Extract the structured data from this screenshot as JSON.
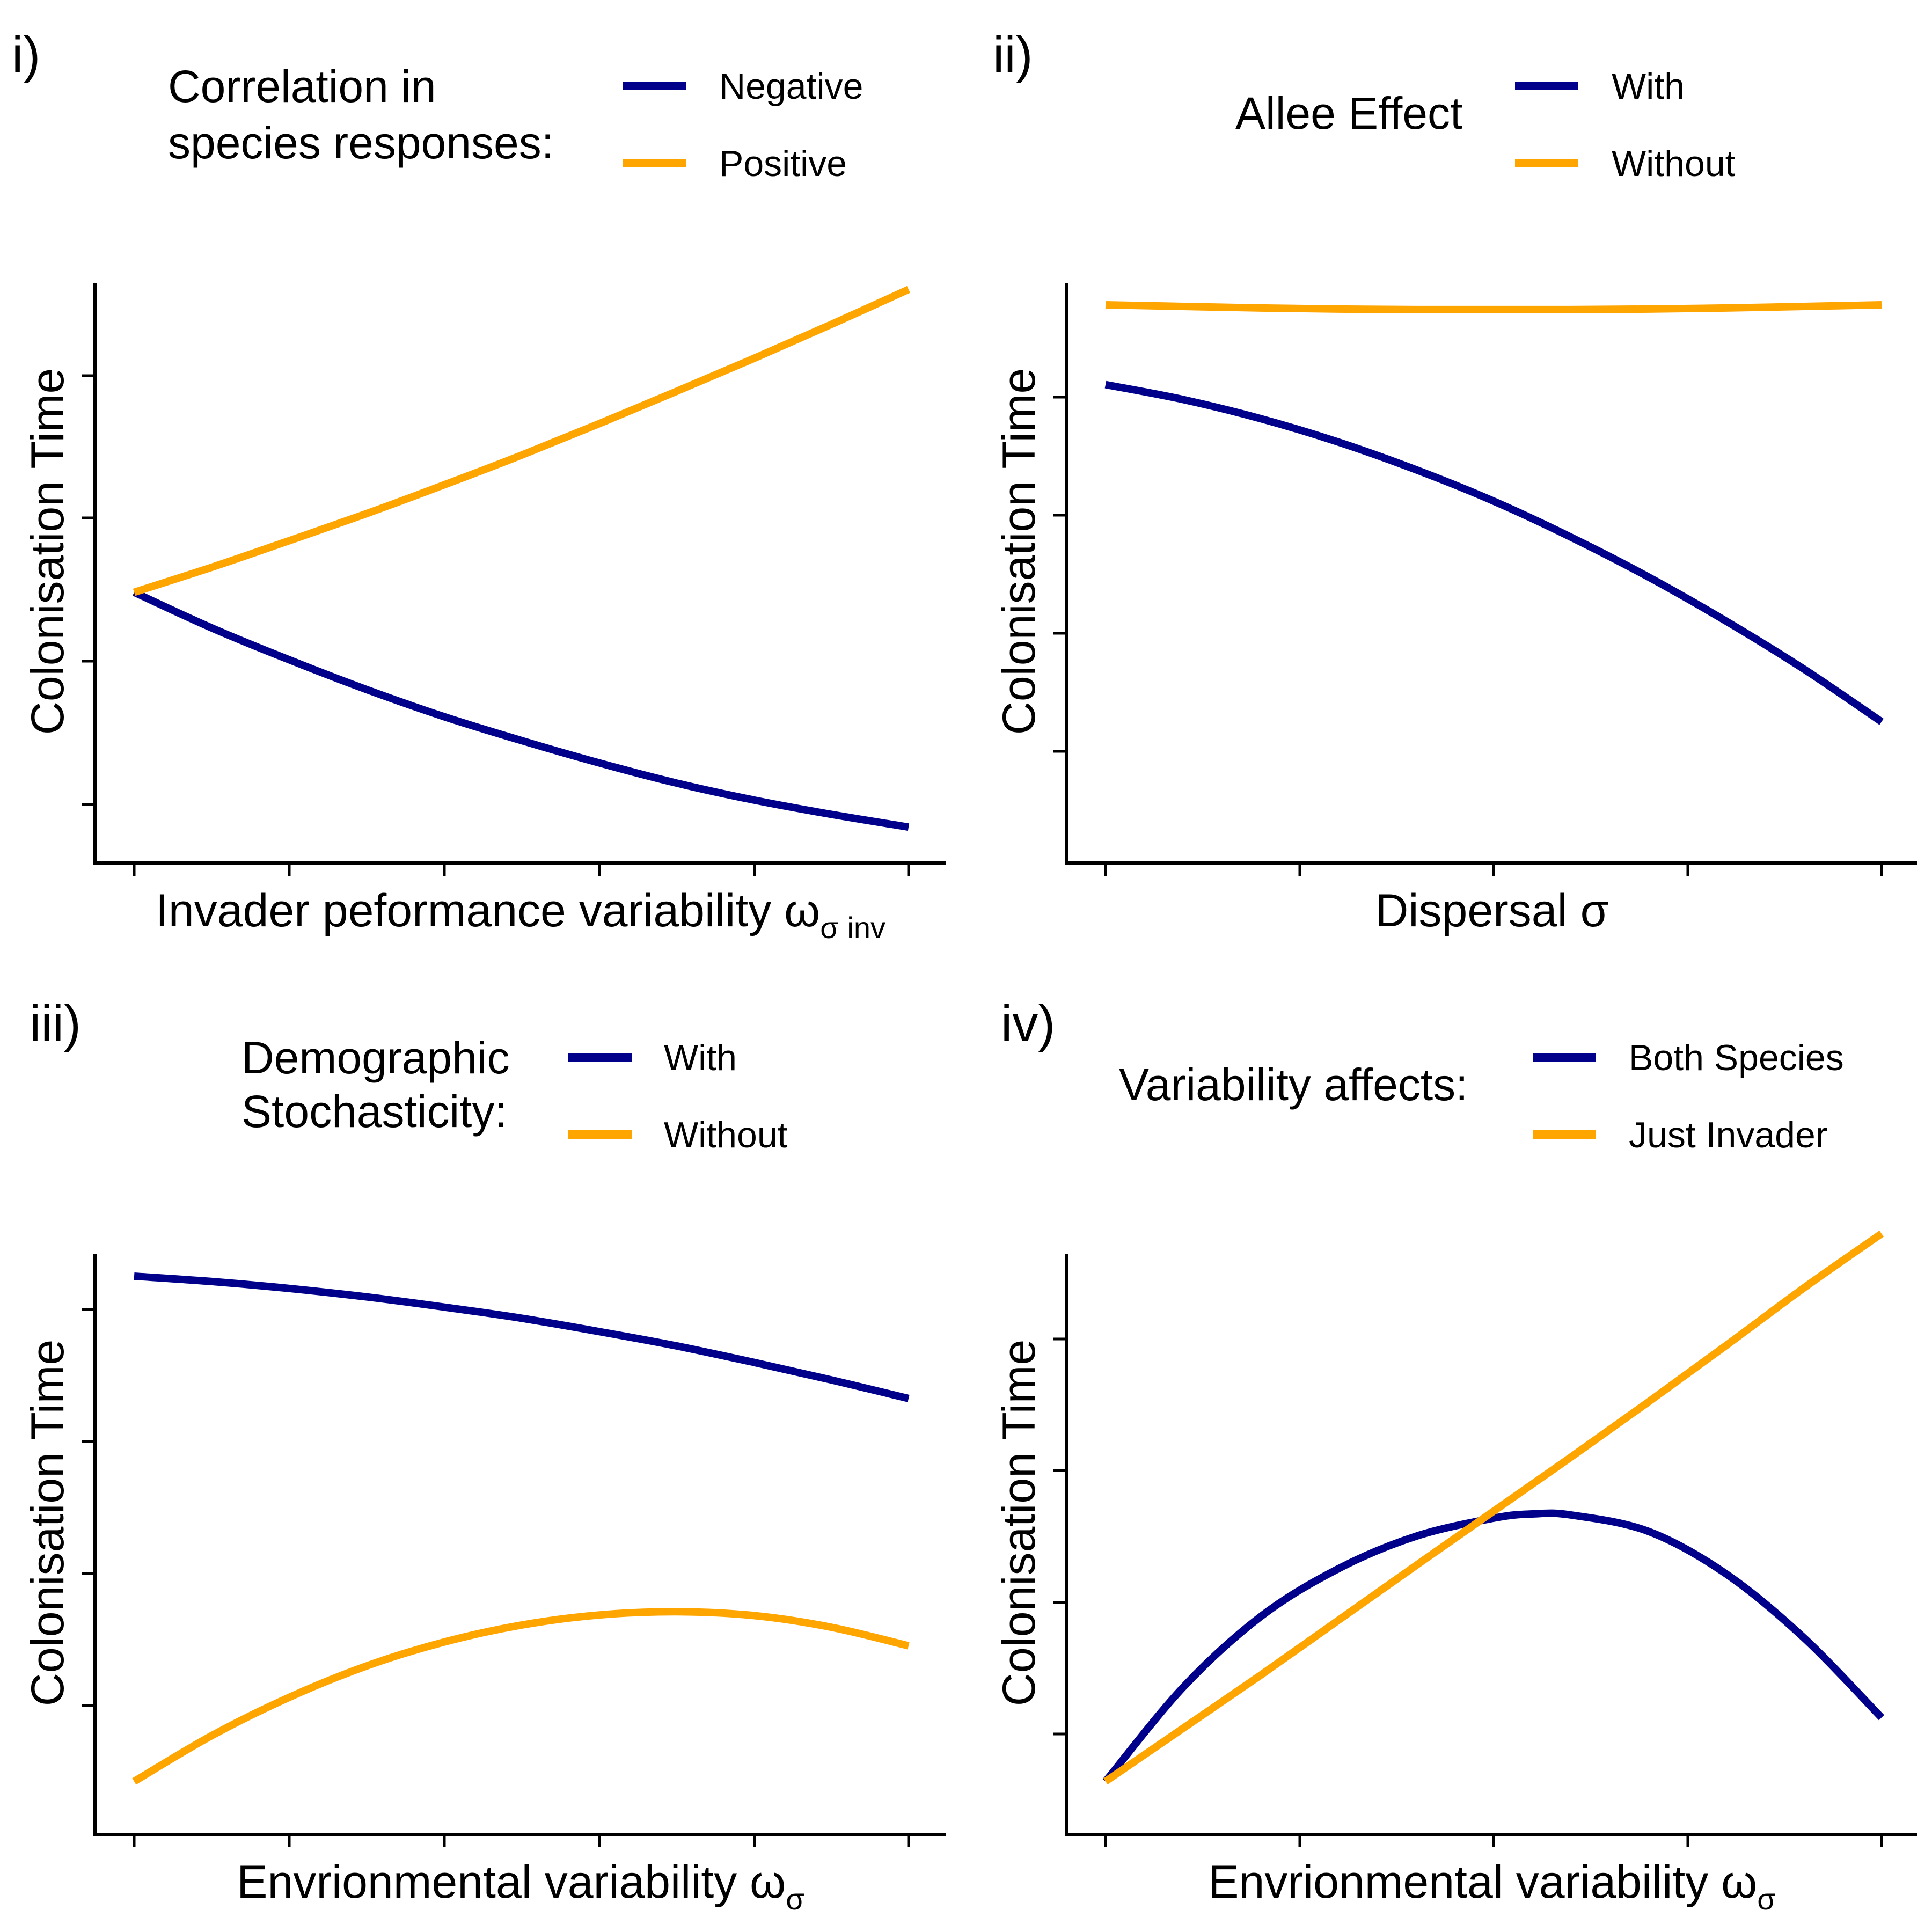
{
  "colors": {
    "navy": "#00008B",
    "orange": "#FFA500"
  },
  "chart_data": [
    {
      "type": "line",
      "panel_label": "i)",
      "legend": {
        "title_lines": [
          "Correlation in",
          "species responses:"
        ],
        "entries": [
          "Negative",
          "Positive"
        ]
      },
      "xlabel": {
        "main": "Invader peformance variability ω",
        "sub": "σ inv"
      },
      "ylabel": "Colonisation Time",
      "xlim": [
        0,
        1
      ],
      "ylim": [
        0,
        1
      ],
      "series": [
        {
          "name": "Negative",
          "color": "#00008B",
          "x": [
            0,
            0.1,
            0.2,
            0.3,
            0.4,
            0.5,
            0.6,
            0.7,
            0.8,
            0.9,
            1.0
          ],
          "y": [
            0.46,
            0.393,
            0.333,
            0.277,
            0.226,
            0.181,
            0.139,
            0.101,
            0.069,
            0.042,
            0.018
          ]
        },
        {
          "name": "Positive",
          "color": "#FFA500",
          "x": [
            0,
            0.1,
            0.2,
            0.3,
            0.4,
            0.5,
            0.6,
            0.7,
            0.8,
            0.9,
            1.0
          ],
          "y": [
            0.46,
            0.507,
            0.557,
            0.608,
            0.662,
            0.718,
            0.777,
            0.838,
            0.9,
            0.964,
            1.03
          ]
        }
      ]
    },
    {
      "type": "line",
      "panel_label": "ii)",
      "legend": {
        "title_lines": [
          "Allee Effect"
        ],
        "entries": [
          "With",
          "Without"
        ]
      },
      "xlabel": {
        "main": "Dispersal σ",
        "sub": ""
      },
      "ylabel": "Colonisation Time",
      "xlim": [
        0,
        1
      ],
      "ylim": [
        0,
        1
      ],
      "series": [
        {
          "name": "With",
          "color": "#00008B",
          "x": [
            0,
            0.1,
            0.2,
            0.3,
            0.4,
            0.5,
            0.6,
            0.7,
            0.8,
            0.9,
            1.0
          ],
          "y": [
            0.85,
            0.822,
            0.786,
            0.742,
            0.69,
            0.631,
            0.563,
            0.488,
            0.405,
            0.315,
            0.216
          ]
        },
        {
          "name": "Without",
          "color": "#FFA500",
          "x": [
            0,
            0.1,
            0.2,
            0.3,
            0.4,
            0.5,
            0.6,
            0.7,
            0.8,
            0.9,
            1.0
          ],
          "y": [
            1.0,
            0.997,
            0.994,
            0.992,
            0.991,
            0.991,
            0.991,
            0.992,
            0.994,
            0.997,
            1.0
          ]
        }
      ]
    },
    {
      "type": "line",
      "panel_label": "iii)",
      "legend": {
        "title_lines": [
          "Demographic",
          "Stochasticity:"
        ],
        "entries": [
          "With",
          "Without"
        ]
      },
      "xlabel": {
        "main": "Envrionmental variability ω",
        "sub": "σ"
      },
      "ylabel": "Colonisation Time",
      "xlim": [
        0,
        1
      ],
      "ylim": [
        0,
        1
      ],
      "series": [
        {
          "name": "With",
          "color": "#00008B",
          "x": [
            0,
            0.1,
            0.2,
            0.3,
            0.4,
            0.5,
            0.6,
            0.7,
            0.8,
            0.9,
            1.0
          ],
          "y": [
            1.0,
            0.99,
            0.977,
            0.961,
            0.942,
            0.921,
            0.896,
            0.869,
            0.838,
            0.805,
            0.77
          ]
        },
        {
          "name": "Without",
          "color": "#FFA500",
          "x": [
            0,
            0.1,
            0.2,
            0.3,
            0.4,
            0.5,
            0.6,
            0.7,
            0.8,
            0.9,
            1.0
          ],
          "y": [
            0.05,
            0.136,
            0.208,
            0.267,
            0.312,
            0.344,
            0.363,
            0.369,
            0.362,
            0.34,
            0.305
          ]
        }
      ]
    },
    {
      "type": "line",
      "panel_label": "iv)",
      "legend": {
        "title_lines": [
          "Variability affects:"
        ],
        "entries": [
          "Both Species",
          "Just Invader"
        ]
      },
      "xlabel": {
        "main": "Envrionmental variability ω",
        "sub": "σ"
      },
      "ylabel": "Colonisation Time",
      "xlim": [
        0,
        1
      ],
      "ylim": [
        0,
        1
      ],
      "series": [
        {
          "name": "Both Species",
          "color": "#00008B",
          "x": [
            0,
            0.1,
            0.2,
            0.3,
            0.4,
            0.5,
            0.55,
            0.6,
            0.7,
            0.8,
            0.9,
            1.0
          ],
          "y": [
            0.05,
            0.227,
            0.36,
            0.45,
            0.511,
            0.545,
            0.553,
            0.551,
            0.52,
            0.44,
            0.32,
            0.17
          ]
        },
        {
          "name": "Just Invader",
          "color": "#FFA500",
          "x": [
            0,
            0.1,
            0.2,
            0.3,
            0.4,
            0.5,
            0.6,
            0.7,
            0.8,
            0.9,
            1.0
          ],
          "y": [
            0.05,
            0.15,
            0.25,
            0.353,
            0.456,
            0.558,
            0.66,
            0.764,
            0.87,
            0.978,
            1.08
          ]
        }
      ]
    }
  ]
}
